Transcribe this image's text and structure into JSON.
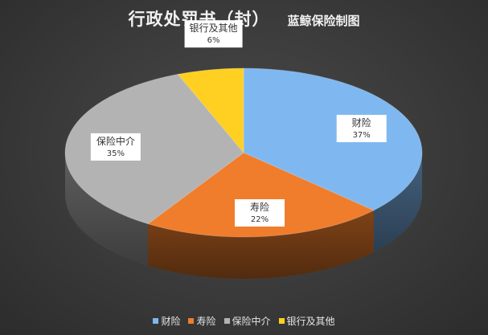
{
  "chart_data": {
    "type": "pie",
    "title": "行政处罚书（封）",
    "subtitle": "蓝鲸保险制图",
    "series": [
      {
        "name": "财险",
        "value": 37,
        "label": "37%",
        "color": "#7fb8f0"
      },
      {
        "name": "寿险",
        "value": 22,
        "label": "22%",
        "color": "#f07d2c"
      },
      {
        "name": "保险中介",
        "value": 35,
        "label": "35%",
        "color": "#b3b3b3"
      },
      {
        "name": "银行及其他",
        "value": 6,
        "label": "6%",
        "color": "#ffd021"
      }
    ],
    "legend_position": "bottom",
    "style": "3d"
  }
}
